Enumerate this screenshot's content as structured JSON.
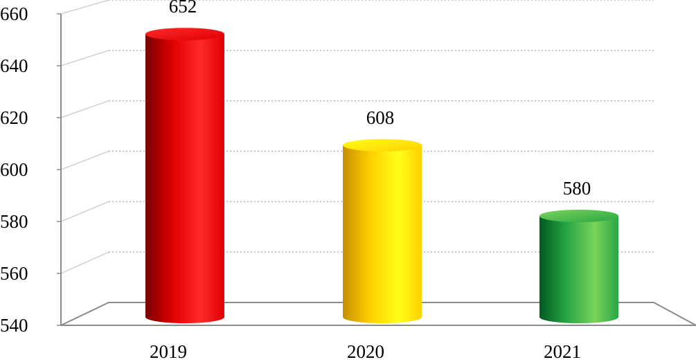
{
  "chart_data": {
    "type": "bar",
    "categories": [
      "2019",
      "2020",
      "2021"
    ],
    "values": [
      652,
      608,
      580
    ],
    "data_labels": [
      "652",
      "608",
      "580"
    ],
    "ylim": [
      540,
      660
    ],
    "y_ticks": [
      "540",
      "560",
      "580",
      "600",
      "620",
      "640",
      "660"
    ],
    "grid": true,
    "legend": "none",
    "bar_colors": {
      "2019": {
        "dark": "#7a0000",
        "mid": "#e00000",
        "light": "#ff2a2a"
      },
      "2020": {
        "dark": "#c79000",
        "mid": "#ffd000",
        "light": "#ffff1a"
      },
      "2021": {
        "dark": "#005a1e",
        "mid": "#28a745",
        "light": "#7ad35a"
      }
    }
  }
}
